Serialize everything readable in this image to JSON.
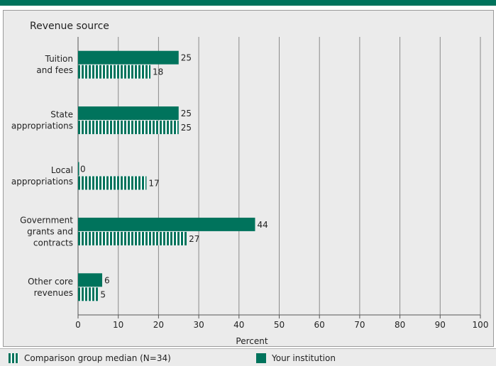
{
  "header_color": "#00735c",
  "chart_data": {
    "type": "bar",
    "orientation": "horizontal",
    "title": "Revenue source",
    "xlabel": "Percent",
    "xlim": [
      0,
      100
    ],
    "xticks": [
      0,
      10,
      20,
      30,
      40,
      50,
      60,
      70,
      80,
      90,
      100
    ],
    "grid": true,
    "categories": [
      [
        "Tuition",
        "and fees"
      ],
      [
        "State",
        "appropriations"
      ],
      [
        "Local",
        "appropriations"
      ],
      [
        "Government",
        "grants and",
        "contracts"
      ],
      [
        "Other core",
        "revenues"
      ]
    ],
    "series": [
      {
        "name": "Your institution",
        "values": [
          25,
          25,
          0,
          44,
          6
        ],
        "pattern": "solid",
        "color": "#00735c"
      },
      {
        "name": "Comparison group median (N=34)",
        "values": [
          18,
          25,
          17,
          27,
          5
        ],
        "pattern": "striped",
        "color": "#00735c"
      }
    ],
    "legend_position": "bottom"
  },
  "legend": {
    "median_label": "Comparison group median (N=34)",
    "yours_label": "Your institution"
  }
}
